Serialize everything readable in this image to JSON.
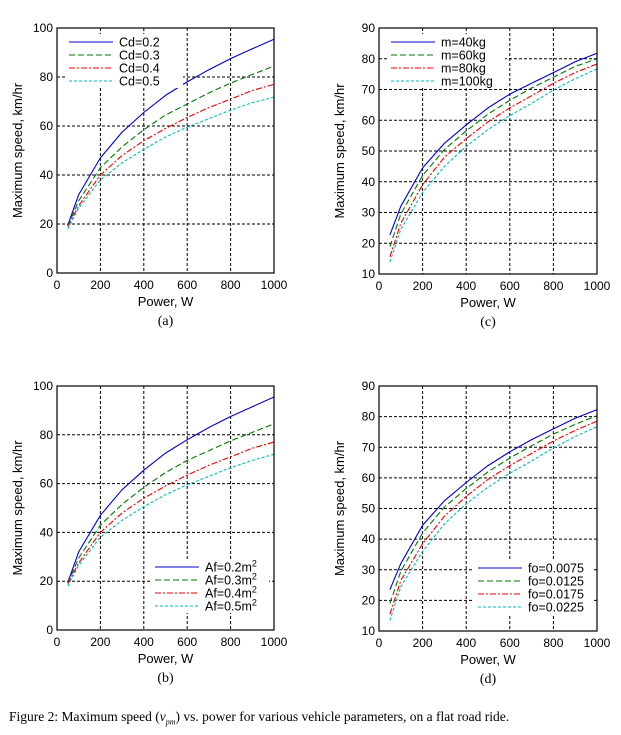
{
  "figure_caption": {
    "prefix": "Figure 2: Maximum speed (",
    "var": "v",
    "var_sub": "pm",
    "suffix": ") vs. power for various vehicle parameters, on a flat road ride."
  },
  "chart_data": [
    {
      "id": "a",
      "type": "line",
      "panel_label": "(a)",
      "xlabel": "Power, W",
      "ylabel": "Maximum speed, km/hr",
      "xlim": [
        0,
        1000
      ],
      "ylim": [
        0,
        100
      ],
      "xticks": [
        0,
        200,
        400,
        600,
        800,
        1000
      ],
      "yticks": [
        0,
        20,
        40,
        60,
        80,
        100
      ],
      "grid": true,
      "legend_position": "top-left",
      "x": [
        50,
        100,
        200,
        300,
        400,
        500,
        600,
        700,
        800,
        900,
        1000
      ],
      "series": [
        {
          "name": "Cd=0.2",
          "color": "#0000cc",
          "dash": "solid",
          "values": [
            19.5,
            32,
            47,
            57.5,
            65.5,
            72.5,
            78,
            83,
            87.5,
            91.5,
            95.4
          ]
        },
        {
          "name": "Cd=0.3",
          "color": "#007700",
          "dash": "dashed",
          "values": [
            19.2,
            29.5,
            43,
            51.5,
            58.5,
            64.5,
            69,
            73.5,
            77.5,
            81,
            84.5
          ]
        },
        {
          "name": "Cd=0.4",
          "color": "#ee0000",
          "dash": "dashdot",
          "values": [
            19,
            27.5,
            40,
            48,
            54,
            59,
            63.5,
            67.5,
            71,
            74.5,
            77
          ]
        },
        {
          "name": "Cd=0.5",
          "color": "#00bbbb",
          "dash": "dotted",
          "values": [
            18,
            26.5,
            38,
            45,
            50.5,
            55.5,
            59.5,
            63,
            66.5,
            69.5,
            71.8
          ]
        }
      ]
    },
    {
      "id": "c",
      "type": "line",
      "panel_label": "(c)",
      "xlabel": "Power, W",
      "ylabel": "Maximum speed, km/hr",
      "xlim": [
        0,
        1000
      ],
      "ylim": [
        10,
        90
      ],
      "xticks": [
        0,
        200,
        400,
        600,
        800,
        1000
      ],
      "yticks": [
        10,
        20,
        30,
        40,
        50,
        60,
        70,
        80,
        90
      ],
      "grid": true,
      "legend_position": "top-left",
      "x": [
        50,
        100,
        200,
        300,
        400,
        500,
        600,
        700,
        800,
        900,
        1000
      ],
      "series": [
        {
          "name": "m=40kg",
          "color": "#0000cc",
          "dash": "solid",
          "values": [
            22.7,
            32,
            44.5,
            52.5,
            58.5,
            64,
            68.5,
            72,
            75.5,
            79,
            81.8
          ]
        },
        {
          "name": "m=60kg",
          "color": "#007700",
          "dash": "dashed",
          "values": [
            18.9,
            29.5,
            42,
            50.5,
            56.5,
            62,
            66.5,
            70.5,
            74,
            77.5,
            80
          ]
        },
        {
          "name": "m=80kg",
          "color": "#ee0000",
          "dash": "dashdot",
          "values": [
            15.6,
            26.5,
            39,
            48,
            54,
            59.5,
            64,
            68,
            72,
            75.5,
            78.3
          ]
        },
        {
          "name": "m=100kg",
          "color": "#00bbbb",
          "dash": "dotted",
          "values": [
            13.9,
            24.5,
            36.5,
            45,
            51.5,
            57,
            61.5,
            65.5,
            69.8,
            73.5,
            76.7
          ]
        }
      ]
    },
    {
      "id": "b",
      "type": "line",
      "panel_label": "(b)",
      "xlabel": "Power, W",
      "ylabel": "Maximum speed, km/hr",
      "xlim": [
        0,
        1000
      ],
      "ylim": [
        0,
        100
      ],
      "xticks": [
        0,
        200,
        400,
        600,
        800,
        1000
      ],
      "yticks": [
        0,
        20,
        40,
        60,
        80,
        100
      ],
      "grid": true,
      "legend_position": "bottom-right",
      "legend_sup": "2",
      "x": [
        50,
        100,
        200,
        300,
        400,
        500,
        600,
        700,
        800,
        900,
        1000
      ],
      "series": [
        {
          "name": "Af=0.2m",
          "color": "#0000cc",
          "dash": "solid",
          "values": [
            19.5,
            32,
            47,
            57.5,
            65.5,
            72.5,
            78,
            83,
            87.5,
            91.5,
            95.5
          ]
        },
        {
          "name": "Af=0.3m",
          "color": "#007700",
          "dash": "dashed",
          "values": [
            19.2,
            29.5,
            43,
            51.5,
            58.5,
            64.5,
            69.5,
            73.5,
            77.5,
            81,
            84.5
          ]
        },
        {
          "name": "Af=0.4m",
          "color": "#ee0000",
          "dash": "dashdot",
          "values": [
            19,
            27.5,
            40,
            48,
            54,
            59,
            63.5,
            67.5,
            71,
            74.5,
            77
          ]
        },
        {
          "name": "Af=0.5m",
          "color": "#00bbbb",
          "dash": "dotted",
          "values": [
            18,
            26.5,
            38,
            45,
            50.5,
            55.5,
            59.5,
            63,
            66.5,
            69.5,
            72
          ]
        }
      ]
    },
    {
      "id": "d",
      "type": "line",
      "panel_label": "(d)",
      "xlabel": "Power, W",
      "ylabel": "Maximum speed, km/hr",
      "xlim": [
        0,
        1000
      ],
      "ylim": [
        10,
        90
      ],
      "xticks": [
        0,
        200,
        400,
        600,
        800,
        1000
      ],
      "yticks": [
        10,
        20,
        30,
        40,
        50,
        60,
        70,
        80,
        90
      ],
      "grid": true,
      "legend_position": "bottom-right",
      "x": [
        50,
        100,
        200,
        300,
        400,
        500,
        600,
        700,
        800,
        900,
        1000
      ],
      "series": [
        {
          "name": "fo=0.0075",
          "color": "#0000cc",
          "dash": "solid",
          "values": [
            23.5,
            32,
            44.5,
            52.5,
            58.5,
            64,
            68.5,
            72.5,
            76,
            79.5,
            82.3
          ]
        },
        {
          "name": "fo=0.0125",
          "color": "#007700",
          "dash": "dashed",
          "values": [
            19,
            29.5,
            42,
            50.5,
            56.5,
            62,
            66.5,
            70.5,
            74.3,
            77.5,
            80.3
          ]
        },
        {
          "name": "fo=0.0175",
          "color": "#ee0000",
          "dash": "dashdot",
          "values": [
            15.5,
            26.5,
            38.5,
            47.5,
            54,
            59.5,
            64,
            68,
            72,
            75.5,
            78.5
          ]
        },
        {
          "name": "fo=0.0225",
          "color": "#00bbbb",
          "dash": "dotted",
          "values": [
            13.5,
            24.5,
            36,
            45,
            51.5,
            57,
            61.5,
            65.5,
            69.8,
            73.5,
            76.7
          ]
        }
      ]
    }
  ]
}
